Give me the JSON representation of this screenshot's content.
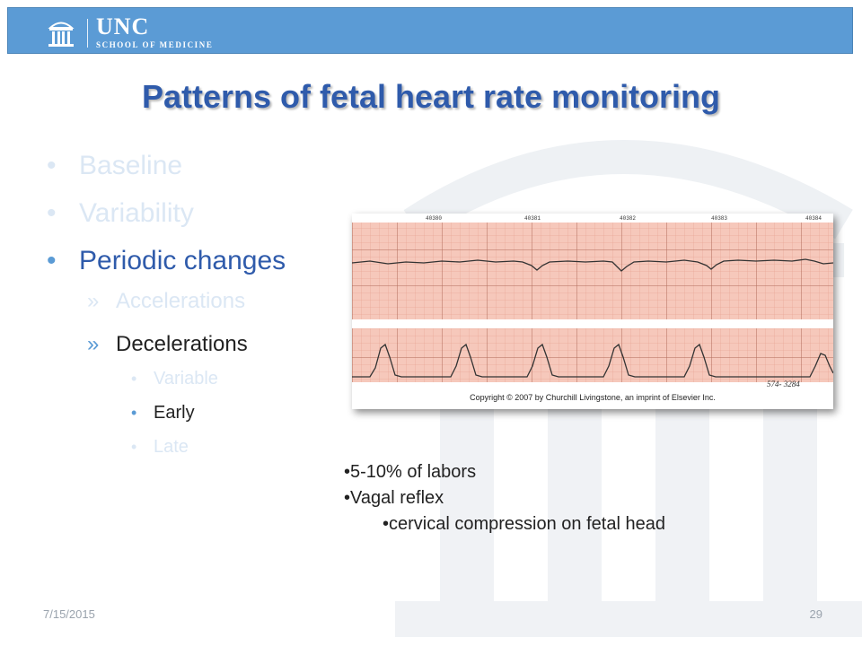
{
  "header": {
    "logo_main": "UNC",
    "logo_sub": "SCHOOL OF MEDICINE"
  },
  "slide": {
    "title": "Patterns of fetal heart rate monitoring",
    "bullets": [
      {
        "label": "Baseline"
      },
      {
        "label": "Variability"
      },
      {
        "label": "Periodic changes"
      }
    ],
    "sub_bullets": [
      {
        "label": "Accelerations"
      },
      {
        "label": "Decelerations"
      }
    ],
    "sub_sub_bullets": [
      {
        "label": "Variable"
      },
      {
        "label": "Early"
      },
      {
        "label": "Late"
      }
    ],
    "bullet_glyph": "•",
    "sub_bullet_glyph": "»"
  },
  "figure": {
    "tick_numbers": [
      "40380",
      "40381",
      "40382",
      "40383",
      "40384"
    ],
    "copyright": "Copyright © 2007 by Churchill Livingstone, an imprint of Elsevier Inc.",
    "strip_code": "574- 3284"
  },
  "notes": {
    "items": [
      "•5-10% of labors",
      "•Vagal reflex"
    ],
    "sub_item": "•cervical compression on fetal head"
  },
  "footer": {
    "date": "7/15/2015",
    "page": "29"
  },
  "colors": {
    "header_bg": "#5b9bd5",
    "title": "#2f5bab",
    "faded_text": "#dbe7f4",
    "grid_fill": "#f6c8bb"
  }
}
